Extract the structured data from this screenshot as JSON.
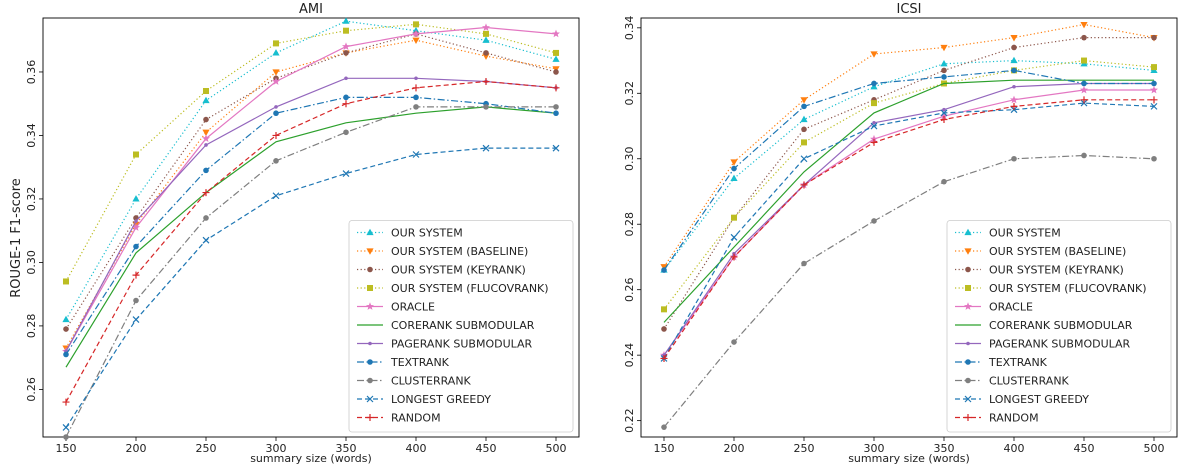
{
  "chart_data": [
    {
      "type": "line",
      "title": "AMI",
      "xlabel": "summary size (words)",
      "ylabel": "ROUGE-1 F1-score",
      "x": [
        150,
        200,
        250,
        300,
        350,
        400,
        450,
        500
      ],
      "xticks": [
        "150",
        "200",
        "250",
        "300",
        "350",
        "400",
        "450",
        "500"
      ],
      "ylim": [
        0.245,
        0.377
      ],
      "yticks": [
        0.26,
        0.28,
        0.3,
        0.32,
        0.34,
        0.36
      ],
      "ytick_labels": [
        "0.26",
        "0.28",
        "0.30",
        "0.32",
        "0.34",
        "0.36"
      ],
      "legend_position": "lower-right",
      "series": [
        {
          "name": "OUR SYSTEM",
          "color": "#17becf",
          "marker": "triangle-up",
          "dash": "dotted",
          "values": [
            0.282,
            0.32,
            0.351,
            0.366,
            0.376,
            0.373,
            0.37,
            0.364
          ]
        },
        {
          "name": "OUR SYSTEM (BASELINE)",
          "color": "#ff7f0e",
          "marker": "triangle-down",
          "dash": "dotted",
          "values": [
            0.273,
            0.312,
            0.341,
            0.36,
            0.366,
            0.37,
            0.365,
            0.361
          ]
        },
        {
          "name": "OUR SYSTEM (KEYRANK)",
          "color": "#8c564b",
          "marker": "circle",
          "dash": "dotted",
          "values": [
            0.279,
            0.314,
            0.345,
            0.358,
            0.366,
            0.372,
            0.366,
            0.36
          ]
        },
        {
          "name": "OUR SYSTEM (FLUCOVRANK)",
          "color": "#bcbd22",
          "marker": "square",
          "dash": "dotted",
          "values": [
            0.294,
            0.334,
            0.354,
            0.369,
            0.373,
            0.375,
            0.372,
            0.366
          ]
        },
        {
          "name": "ORACLE",
          "color": "#e377c2",
          "marker": "star",
          "dash": "solid",
          "values": [
            0.272,
            0.311,
            0.339,
            0.357,
            0.368,
            0.372,
            0.374,
            0.372
          ]
        },
        {
          "name": "CORERANK SUBMODULAR",
          "color": "#2ca02c",
          "marker": "none",
          "dash": "solid",
          "values": [
            0.267,
            0.303,
            0.322,
            0.338,
            0.344,
            0.347,
            0.349,
            0.347
          ]
        },
        {
          "name": "PAGERANK SUBMODULAR",
          "color": "#9467bd",
          "marker": "small-circle",
          "dash": "solid",
          "values": [
            0.272,
            0.313,
            0.337,
            0.349,
            0.358,
            0.358,
            0.357,
            0.355
          ]
        },
        {
          "name": "TEXTRANK",
          "color": "#1f77b4",
          "marker": "circle",
          "dash": "dashdot",
          "values": [
            0.271,
            0.305,
            0.329,
            0.347,
            0.352,
            0.352,
            0.35,
            0.347
          ]
        },
        {
          "name": "CLUSTERRANK",
          "color": "#7f7f7f",
          "marker": "circle",
          "dash": "dashdot",
          "values": [
            0.245,
            0.288,
            0.314,
            0.332,
            0.341,
            0.349,
            0.349,
            0.349
          ]
        },
        {
          "name": "LONGEST GREEDY",
          "color": "#1f77b4",
          "marker": "x",
          "dash": "dashed",
          "values": [
            0.248,
            0.282,
            0.307,
            0.321,
            0.328,
            0.334,
            0.336,
            0.336
          ]
        },
        {
          "name": "RANDOM",
          "color": "#d62728",
          "marker": "plus",
          "dash": "dashed",
          "values": [
            0.256,
            0.296,
            0.322,
            0.34,
            0.35,
            0.355,
            0.357,
            0.355
          ]
        }
      ]
    },
    {
      "type": "line",
      "title": "ICSI",
      "xlabel": "summary size (words)",
      "ylabel": "",
      "x": [
        150,
        200,
        250,
        300,
        350,
        400,
        450,
        500
      ],
      "xticks": [
        "150",
        "200",
        "250",
        "300",
        "350",
        "400",
        "450",
        "500"
      ],
      "ylim": [
        0.215,
        0.343
      ],
      "yticks": [
        0.22,
        0.24,
        0.26,
        0.28,
        0.3,
        0.32,
        0.34
      ],
      "ytick_labels": [
        "0.22",
        "0.24",
        "0.26",
        "0.28",
        "0.30",
        "0.32",
        "0.34"
      ],
      "legend_position": "lower-right",
      "series": [
        {
          "name": "OUR SYSTEM",
          "color": "#17becf",
          "marker": "triangle-up",
          "dash": "dotted",
          "values": [
            0.266,
            0.294,
            0.312,
            0.322,
            0.329,
            0.33,
            0.329,
            0.327
          ]
        },
        {
          "name": "OUR SYSTEM (BASELINE)",
          "color": "#ff7f0e",
          "marker": "triangle-down",
          "dash": "dotted",
          "values": [
            0.267,
            0.299,
            0.318,
            0.332,
            0.334,
            0.337,
            0.341,
            0.337
          ]
        },
        {
          "name": "OUR SYSTEM (KEYRANK)",
          "color": "#8c564b",
          "marker": "circle",
          "dash": "dotted",
          "values": [
            0.248,
            0.282,
            0.309,
            0.318,
            0.327,
            0.334,
            0.337,
            0.337
          ]
        },
        {
          "name": "OUR SYSTEM (FLUCOVRANK)",
          "color": "#bcbd22",
          "marker": "square",
          "dash": "dotted",
          "values": [
            0.254,
            0.282,
            0.305,
            0.317,
            0.323,
            0.327,
            0.33,
            0.328
          ]
        },
        {
          "name": "ORACLE",
          "color": "#e377c2",
          "marker": "star",
          "dash": "solid",
          "values": [
            0.24,
            0.27,
            0.292,
            0.306,
            0.313,
            0.318,
            0.321,
            0.321
          ]
        },
        {
          "name": "CORERANK SUBMODULAR",
          "color": "#2ca02c",
          "marker": "none",
          "dash": "solid",
          "values": [
            0.25,
            0.273,
            0.296,
            0.314,
            0.323,
            0.324,
            0.324,
            0.324
          ]
        },
        {
          "name": "PAGERANK SUBMODULAR",
          "color": "#9467bd",
          "marker": "small-circle",
          "dash": "solid",
          "values": [
            0.24,
            0.271,
            0.292,
            0.311,
            0.315,
            0.322,
            0.323,
            0.323
          ]
        },
        {
          "name": "TEXTRANK",
          "color": "#1f77b4",
          "marker": "circle",
          "dash": "dashdot",
          "values": [
            0.266,
            0.297,
            0.316,
            0.323,
            0.325,
            0.327,
            0.323,
            0.323
          ]
        },
        {
          "name": "CLUSTERRANK",
          "color": "#7f7f7f",
          "marker": "circle",
          "dash": "dashdot",
          "values": [
            0.218,
            0.244,
            0.268,
            0.281,
            0.293,
            0.3,
            0.301,
            0.3
          ]
        },
        {
          "name": "LONGEST GREEDY",
          "color": "#1f77b4",
          "marker": "x",
          "dash": "dashed",
          "values": [
            0.239,
            0.276,
            0.3,
            0.31,
            0.314,
            0.315,
            0.317,
            0.316
          ]
        },
        {
          "name": "RANDOM",
          "color": "#d62728",
          "marker": "plus",
          "dash": "dashed",
          "values": [
            0.239,
            0.27,
            0.292,
            0.305,
            0.312,
            0.316,
            0.318,
            0.318
          ]
        }
      ]
    }
  ]
}
